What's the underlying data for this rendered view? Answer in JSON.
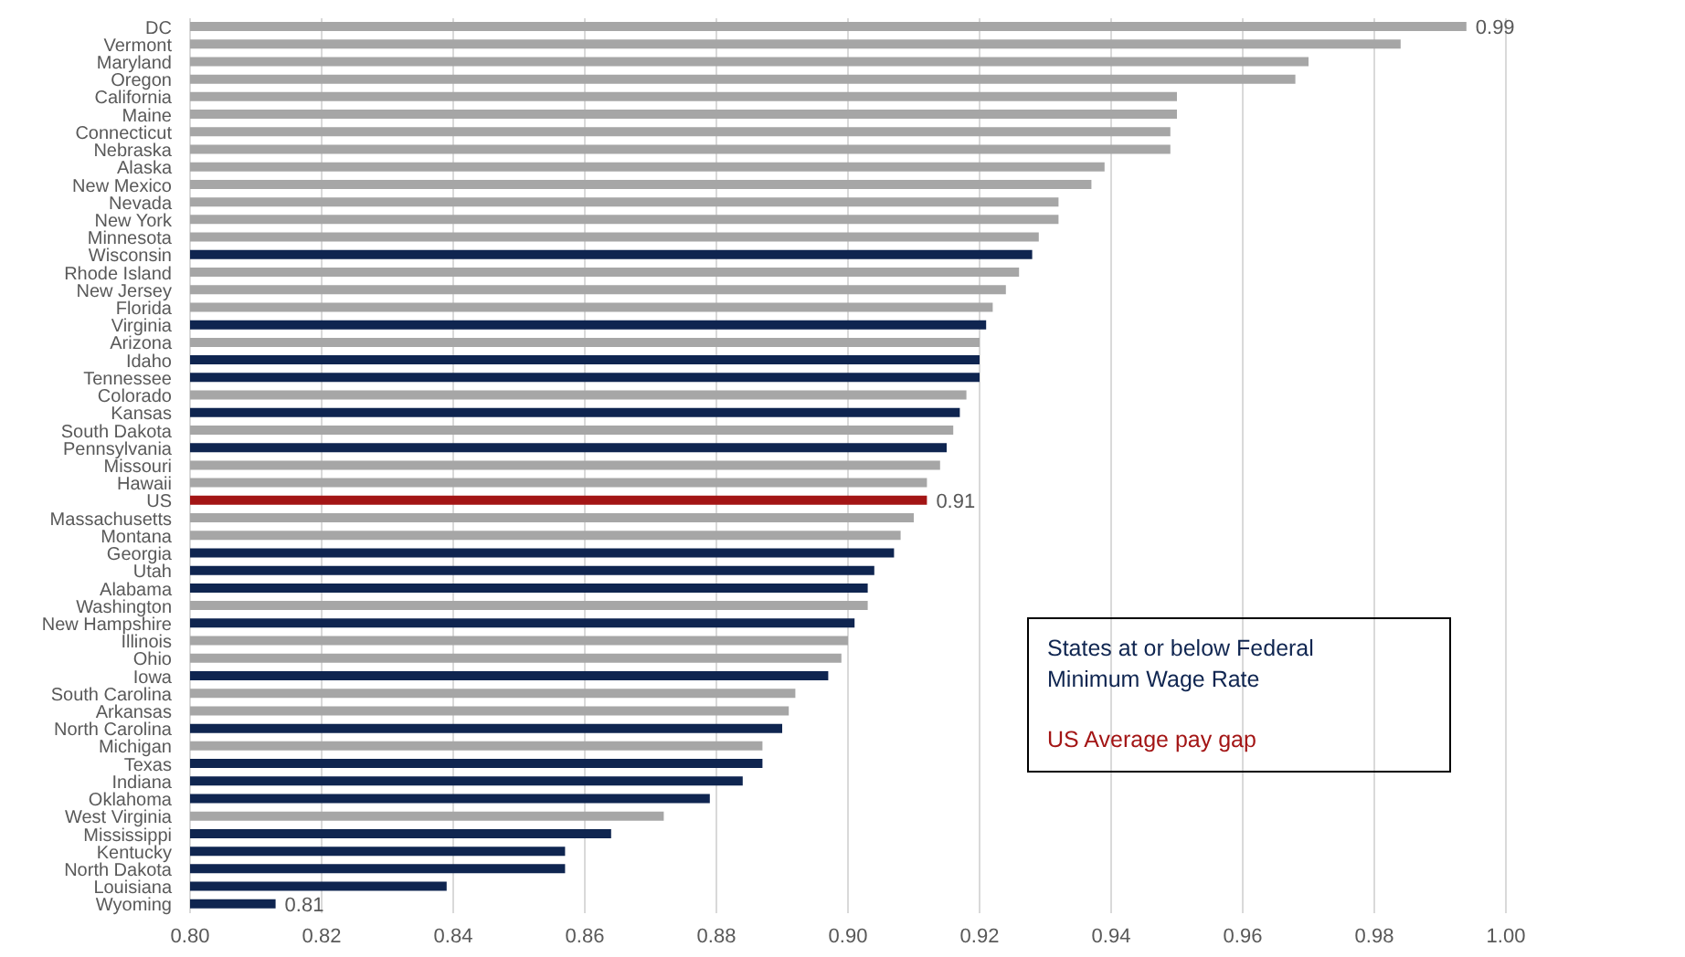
{
  "chart_data": {
    "type": "bar",
    "orientation": "horizontal",
    "stacked": true,
    "categories": [
      "DC",
      "Vermont",
      "Maryland",
      "Oregon",
      "California",
      "Maine",
      "Connecticut",
      "Nebraska",
      "Alaska",
      "New Mexico",
      "Nevada",
      "New York",
      "Minnesota",
      "Wisconsin",
      "Rhode Island",
      "New Jersey",
      "Florida",
      "Virginia",
      "Arizona",
      "Idaho",
      "Tennessee",
      "Colorado",
      "Kansas",
      "South Dakota",
      "Pennsylvania",
      "Missouri",
      "Hawaii",
      "US",
      "Massachusetts",
      "Montana",
      "Georgia",
      "Utah",
      "Alabama",
      "Washington",
      "New Hampshire",
      "Illinois",
      "Ohio",
      "Iowa",
      "South Carolina",
      "Arkansas",
      "North Carolina",
      "Michigan",
      "Texas",
      "Indiana",
      "Oklahoma",
      "West Virginia",
      "Mississippi",
      "Kentucky",
      "North Dakota",
      "Louisiana",
      "Wyoming"
    ],
    "series": [
      {
        "color": "#a6a6a6",
        "values": [
          0.994,
          0.984,
          0.97,
          0.968,
          0.95,
          0.95,
          0.949,
          0.949,
          0.939,
          0.937,
          0.932,
          0.932,
          0.929,
          null,
          0.926,
          0.924,
          0.922,
          null,
          0.92,
          null,
          null,
          0.918,
          null,
          0.916,
          null,
          0.914,
          0.912,
          null,
          0.91,
          0.908,
          null,
          null,
          null,
          0.903,
          null,
          0.9,
          0.899,
          null,
          0.892,
          0.891,
          null,
          0.887,
          null,
          null,
          null,
          0.872,
          null,
          null,
          null,
          null,
          null
        ],
        "value_labels": [
          "0.99",
          null,
          null,
          null,
          null,
          null,
          null,
          null,
          null,
          null,
          null,
          null,
          null,
          null,
          null,
          null,
          null,
          null,
          null,
          null,
          null,
          null,
          null,
          null,
          null,
          null,
          null,
          null,
          null,
          null,
          null,
          null,
          null,
          null,
          null,
          null,
          null,
          null,
          null,
          null,
          null,
          null,
          null,
          null,
          null,
          null,
          null,
          null,
          null,
          null,
          null
        ]
      },
      {
        "name": "States at or below Federal Minimum Wage Rate",
        "color": "#0f2550",
        "values": [
          null,
          null,
          null,
          null,
          null,
          null,
          null,
          null,
          null,
          null,
          null,
          null,
          null,
          0.928,
          null,
          null,
          null,
          0.921,
          null,
          0.92,
          0.92,
          null,
          0.917,
          null,
          0.915,
          null,
          null,
          null,
          null,
          null,
          0.907,
          0.904,
          0.903,
          null,
          0.901,
          null,
          null,
          0.897,
          null,
          null,
          0.89,
          null,
          0.887,
          0.884,
          0.879,
          null,
          0.864,
          0.857,
          0.857,
          0.839,
          0.813
        ],
        "value_labels": [
          null,
          null,
          null,
          null,
          null,
          null,
          null,
          null,
          null,
          null,
          null,
          null,
          null,
          null,
          null,
          null,
          null,
          null,
          null,
          null,
          null,
          null,
          null,
          null,
          null,
          null,
          null,
          null,
          null,
          null,
          null,
          null,
          null,
          null,
          null,
          null,
          null,
          null,
          null,
          null,
          null,
          null,
          null,
          null,
          null,
          null,
          null,
          null,
          null,
          null,
          "0.81"
        ]
      },
      {
        "name": "US Average pay gap",
        "color": "#a31515",
        "values": [
          null,
          null,
          null,
          null,
          null,
          null,
          null,
          null,
          null,
          null,
          null,
          null,
          null,
          null,
          null,
          null,
          null,
          null,
          null,
          null,
          null,
          null,
          null,
          null,
          null,
          null,
          null,
          0.912,
          null,
          null,
          null,
          null,
          null,
          null,
          null,
          null,
          null,
          null,
          null,
          null,
          null,
          null,
          null,
          null,
          null,
          null,
          null,
          null,
          null,
          null,
          null
        ],
        "value_labels": [
          null,
          null,
          null,
          null,
          null,
          null,
          null,
          null,
          null,
          null,
          null,
          null,
          null,
          null,
          null,
          null,
          null,
          null,
          null,
          null,
          null,
          null,
          null,
          null,
          null,
          null,
          null,
          "0.91",
          null,
          null,
          null,
          null,
          null,
          null,
          null,
          null,
          null,
          null,
          null,
          null,
          null,
          null,
          null,
          null,
          null,
          null,
          null,
          null,
          null,
          null,
          null
        ]
      }
    ],
    "xlim": [
      0.8,
      1.0
    ],
    "xticks": [
      {
        "value": 0.8,
        "label": "0.80"
      },
      {
        "value": 0.82,
        "label": "0.82"
      },
      {
        "value": 0.84,
        "label": "0.84"
      },
      {
        "value": 0.86,
        "label": "0.86"
      },
      {
        "value": 0.88,
        "label": "0.88"
      },
      {
        "value": 0.9,
        "label": "0.90"
      },
      {
        "value": 0.92,
        "label": "0.92"
      },
      {
        "value": 0.94,
        "label": "0.94"
      },
      {
        "value": 0.96,
        "label": "0.96"
      },
      {
        "value": 0.98,
        "label": "0.98"
      },
      {
        "value": 1.0,
        "label": "1.00"
      }
    ],
    "grid": "x",
    "legend": "right"
  }
}
